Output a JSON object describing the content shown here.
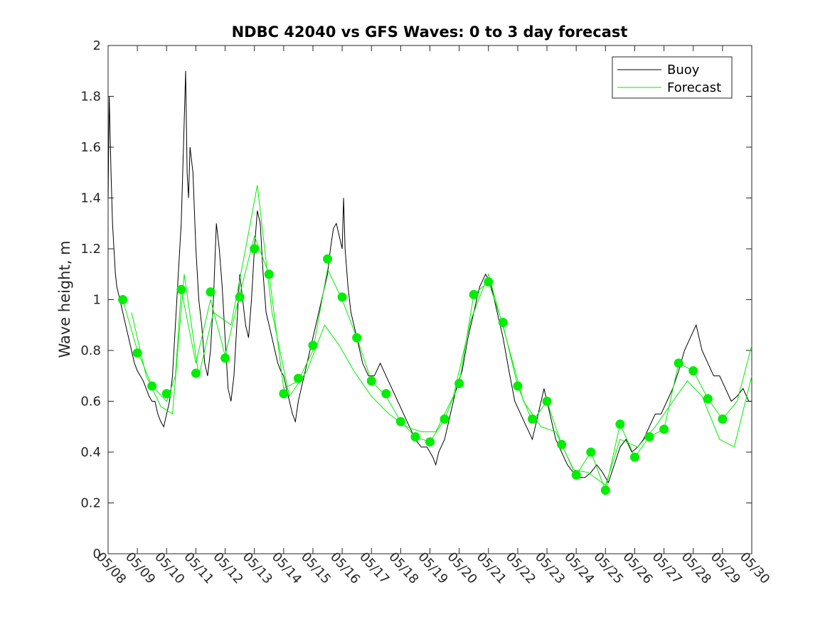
{
  "chart_data": {
    "type": "line",
    "title": "NDBC 42040 vs GFS Waves: 0 to 3 day forecast",
    "xlabel": "",
    "ylabel": "Wave height, m",
    "ylim": [
      0,
      2
    ],
    "yticks": [
      0,
      0.2,
      0.4,
      0.6,
      0.8,
      1,
      1.2,
      1.4,
      1.6,
      1.8,
      2
    ],
    "ytick_labels": [
      "0",
      "0.2",
      "0.4",
      "0.6",
      "0.8",
      "1",
      "1.2",
      "1.4",
      "1.6",
      "1.8",
      "2"
    ],
    "xlim": [
      "05/08",
      "05/30"
    ],
    "xtick_labels": [
      "05/08",
      "05/09",
      "05/10",
      "05/11",
      "05/12",
      "05/13",
      "05/14",
      "05/15",
      "05/16",
      "05/17",
      "05/18",
      "05/19",
      "05/20",
      "05/21",
      "05/22",
      "05/23",
      "05/24",
      "05/25",
      "05/26",
      "05/27",
      "05/28",
      "05/29",
      "05/30"
    ],
    "x_unit": "days after 05/08 00:00",
    "grid": false,
    "legend": {
      "position": "top-right",
      "entries": [
        "Buoy",
        "Forecast"
      ]
    },
    "colors": {
      "buoy": "#000000",
      "forecast": "#00ee00",
      "marker": "#00ee00"
    },
    "series": [
      {
        "name": "Buoy",
        "style": "line",
        "points": [
          [
            0,
            1.4
          ],
          [
            0.04,
            1.8
          ],
          [
            0.1,
            1.5
          ],
          [
            0.15,
            1.3
          ],
          [
            0.2,
            1.2
          ],
          [
            0.25,
            1.1
          ],
          [
            0.3,
            1.05
          ],
          [
            0.4,
            1.0
          ],
          [
            0.5,
            0.95
          ],
          [
            0.6,
            0.9
          ],
          [
            0.7,
            0.85
          ],
          [
            0.8,
            0.8
          ],
          [
            0.9,
            0.75
          ],
          [
            1.0,
            0.72
          ],
          [
            1.1,
            0.7
          ],
          [
            1.2,
            0.68
          ],
          [
            1.3,
            0.65
          ],
          [
            1.4,
            0.62
          ],
          [
            1.5,
            0.6
          ],
          [
            1.6,
            0.6
          ],
          [
            1.7,
            0.55
          ],
          [
            1.8,
            0.52
          ],
          [
            1.9,
            0.5
          ],
          [
            2.0,
            0.55
          ],
          [
            2.1,
            0.6
          ],
          [
            2.2,
            0.7
          ],
          [
            2.3,
            0.9
          ],
          [
            2.4,
            1.1
          ],
          [
            2.5,
            1.3
          ],
          [
            2.55,
            1.5
          ],
          [
            2.6,
            1.7
          ],
          [
            2.65,
            1.9
          ],
          [
            2.7,
            1.5
          ],
          [
            2.75,
            1.4
          ],
          [
            2.8,
            1.6
          ],
          [
            2.9,
            1.5
          ],
          [
            3.0,
            1.2
          ],
          [
            3.1,
            1.0
          ],
          [
            3.2,
            0.9
          ],
          [
            3.3,
            0.75
          ],
          [
            3.4,
            0.7
          ],
          [
            3.5,
            0.8
          ],
          [
            3.6,
            1.0
          ],
          [
            3.7,
            1.3
          ],
          [
            3.8,
            1.2
          ],
          [
            3.9,
            1.05
          ],
          [
            4.0,
            0.85
          ],
          [
            4.1,
            0.65
          ],
          [
            4.2,
            0.6
          ],
          [
            4.3,
            0.7
          ],
          [
            4.4,
            0.9
          ],
          [
            4.5,
            1.1
          ],
          [
            4.6,
            1.0
          ],
          [
            4.7,
            0.9
          ],
          [
            4.8,
            0.85
          ],
          [
            4.9,
            1.0
          ],
          [
            5.0,
            1.2
          ],
          [
            5.1,
            1.35
          ],
          [
            5.2,
            1.3
          ],
          [
            5.3,
            1.1
          ],
          [
            5.4,
            0.95
          ],
          [
            5.5,
            0.9
          ],
          [
            5.6,
            0.85
          ],
          [
            5.7,
            0.8
          ],
          [
            5.8,
            0.75
          ],
          [
            5.9,
            0.72
          ],
          [
            6.0,
            0.7
          ],
          [
            6.1,
            0.65
          ],
          [
            6.2,
            0.6
          ],
          [
            6.3,
            0.55
          ],
          [
            6.4,
            0.52
          ],
          [
            6.5,
            0.6
          ],
          [
            6.7,
            0.7
          ],
          [
            6.9,
            0.8
          ],
          [
            7.1,
            0.9
          ],
          [
            7.3,
            1.0
          ],
          [
            7.5,
            1.1
          ],
          [
            7.6,
            1.2
          ],
          [
            7.7,
            1.28
          ],
          [
            7.8,
            1.3
          ],
          [
            7.9,
            1.25
          ],
          [
            8.0,
            1.2
          ],
          [
            8.05,
            1.4
          ],
          [
            8.1,
            1.2
          ],
          [
            8.2,
            1.05
          ],
          [
            8.3,
            0.95
          ],
          [
            8.5,
            0.85
          ],
          [
            8.7,
            0.75
          ],
          [
            8.9,
            0.7
          ],
          [
            9.1,
            0.7
          ],
          [
            9.3,
            0.75
          ],
          [
            9.5,
            0.7
          ],
          [
            9.7,
            0.65
          ],
          [
            9.9,
            0.6
          ],
          [
            10.1,
            0.55
          ],
          [
            10.3,
            0.5
          ],
          [
            10.5,
            0.45
          ],
          [
            10.7,
            0.42
          ],
          [
            10.9,
            0.42
          ],
          [
            11.0,
            0.4
          ],
          [
            11.1,
            0.38
          ],
          [
            11.2,
            0.35
          ],
          [
            11.3,
            0.4
          ],
          [
            11.5,
            0.45
          ],
          [
            11.7,
            0.55
          ],
          [
            11.9,
            0.65
          ],
          [
            12.1,
            0.72
          ],
          [
            12.3,
            0.85
          ],
          [
            12.5,
            0.95
          ],
          [
            12.7,
            1.05
          ],
          [
            12.9,
            1.1
          ],
          [
            13.1,
            1.05
          ],
          [
            13.3,
            0.95
          ],
          [
            13.5,
            0.85
          ],
          [
            13.7,
            0.72
          ],
          [
            13.9,
            0.6
          ],
          [
            14.1,
            0.55
          ],
          [
            14.3,
            0.5
          ],
          [
            14.5,
            0.45
          ],
          [
            14.7,
            0.55
          ],
          [
            14.9,
            0.65
          ],
          [
            15.1,
            0.55
          ],
          [
            15.3,
            0.45
          ],
          [
            15.5,
            0.4
          ],
          [
            15.7,
            0.35
          ],
          [
            15.9,
            0.32
          ],
          [
            16.1,
            0.3
          ],
          [
            16.3,
            0.3
          ],
          [
            16.5,
            0.32
          ],
          [
            16.7,
            0.35
          ],
          [
            16.9,
            0.32
          ],
          [
            17.1,
            0.28
          ],
          [
            17.3,
            0.35
          ],
          [
            17.5,
            0.42
          ],
          [
            17.7,
            0.45
          ],
          [
            17.9,
            0.4
          ],
          [
            18.1,
            0.42
          ],
          [
            18.3,
            0.45
          ],
          [
            18.5,
            0.5
          ],
          [
            18.7,
            0.55
          ],
          [
            18.9,
            0.55
          ],
          [
            19.1,
            0.6
          ],
          [
            19.3,
            0.65
          ],
          [
            19.5,
            0.72
          ],
          [
            19.7,
            0.8
          ],
          [
            19.9,
            0.85
          ],
          [
            20.1,
            0.9
          ],
          [
            20.3,
            0.8
          ],
          [
            20.5,
            0.75
          ],
          [
            20.7,
            0.7
          ],
          [
            20.9,
            0.7
          ],
          [
            21.1,
            0.65
          ],
          [
            21.3,
            0.6
          ],
          [
            21.5,
            0.62
          ],
          [
            21.7,
            0.65
          ],
          [
            21.9,
            0.6
          ],
          [
            22.0,
            0.6
          ]
        ]
      },
      {
        "name": "Forecast",
        "style": "line",
        "points": [
          [
            0.5,
            1.0
          ],
          [
            1.0,
            0.8
          ],
          [
            1.5,
            0.66
          ],
          [
            2.0,
            0.6
          ],
          [
            2.3,
            0.7
          ],
          [
            2.5,
            1.04
          ],
          [
            3.0,
            0.75
          ],
          [
            3.5,
            1.0
          ],
          [
            4.0,
            0.78
          ],
          [
            4.5,
            1.02
          ],
          [
            5.0,
            1.25
          ],
          [
            5.5,
            1.1
          ],
          [
            6.0,
            0.65
          ],
          [
            6.5,
            0.68
          ],
          [
            7.0,
            0.8
          ],
          [
            7.5,
            1.12
          ],
          [
            8.0,
            1.0
          ],
          [
            8.5,
            0.85
          ],
          [
            9.0,
            0.68
          ],
          [
            9.5,
            0.62
          ],
          [
            10.0,
            0.52
          ],
          [
            10.5,
            0.46
          ],
          [
            11.0,
            0.44
          ],
          [
            11.5,
            0.53
          ],
          [
            12.0,
            0.67
          ],
          [
            12.5,
            1.02
          ],
          [
            13.0,
            1.07
          ],
          [
            13.5,
            0.9
          ],
          [
            14.0,
            0.66
          ],
          [
            14.5,
            0.52
          ],
          [
            15.0,
            0.6
          ],
          [
            15.5,
            0.43
          ],
          [
            16.0,
            0.31
          ],
          [
            16.5,
            0.4
          ],
          [
            17.0,
            0.25
          ],
          [
            17.5,
            0.51
          ],
          [
            18.0,
            0.38
          ],
          [
            18.5,
            0.46
          ],
          [
            19.0,
            0.49
          ],
          [
            19.5,
            0.75
          ],
          [
            20.0,
            0.72
          ],
          [
            20.5,
            0.61
          ],
          [
            21.0,
            0.53
          ],
          [
            21.5,
            0.6
          ],
          [
            22.0,
            0.82
          ]
        ]
      },
      {
        "name": "",
        "style": "line",
        "points": [
          [
            0.8,
            0.95
          ],
          [
            1.3,
            0.7
          ],
          [
            1.8,
            0.58
          ],
          [
            2.2,
            0.55
          ],
          [
            2.6,
            1.1
          ],
          [
            3.1,
            0.7
          ],
          [
            3.6,
            0.95
          ],
          [
            4.2,
            0.9
          ],
          [
            4.7,
            1.2
          ],
          [
            5.1,
            1.45
          ],
          [
            5.6,
            0.95
          ],
          [
            6.2,
            0.62
          ],
          [
            6.8,
            0.72
          ],
          [
            7.4,
            0.9
          ],
          [
            7.9,
            0.82
          ],
          [
            8.4,
            0.72
          ],
          [
            9.0,
            0.62
          ],
          [
            9.6,
            0.55
          ],
          [
            10.2,
            0.5
          ],
          [
            10.7,
            0.48
          ],
          [
            11.2,
            0.48
          ],
          [
            11.8,
            0.62
          ],
          [
            12.4,
            0.92
          ],
          [
            13.0,
            1.1
          ],
          [
            13.6,
            0.85
          ],
          [
            14.2,
            0.6
          ],
          [
            14.8,
            0.5
          ],
          [
            15.3,
            0.48
          ],
          [
            15.9,
            0.33
          ],
          [
            16.4,
            0.32
          ],
          [
            17.0,
            0.27
          ],
          [
            17.5,
            0.45
          ],
          [
            18.1,
            0.42
          ],
          [
            18.7,
            0.5
          ],
          [
            19.3,
            0.6
          ],
          [
            19.8,
            0.68
          ],
          [
            20.3,
            0.62
          ],
          [
            20.9,
            0.45
          ],
          [
            21.4,
            0.42
          ],
          [
            22.0,
            0.7
          ]
        ]
      }
    ],
    "markers": {
      "name": "",
      "points": [
        [
          0.5,
          1.0
        ],
        [
          1.0,
          0.79
        ],
        [
          1.5,
          0.66
        ],
        [
          2.0,
          0.63
        ],
        [
          2.5,
          1.04
        ],
        [
          3.0,
          0.71
        ],
        [
          3.5,
          1.03
        ],
        [
          4.0,
          0.77
        ],
        [
          4.5,
          1.01
        ],
        [
          5.0,
          1.2
        ],
        [
          5.5,
          1.1
        ],
        [
          6.0,
          0.63
        ],
        [
          6.5,
          0.69
        ],
        [
          7.0,
          0.82
        ],
        [
          7.5,
          1.16
        ],
        [
          8.0,
          1.01
        ],
        [
          8.5,
          0.85
        ],
        [
          9.0,
          0.68
        ],
        [
          9.5,
          0.63
        ],
        [
          10.0,
          0.52
        ],
        [
          10.5,
          0.46
        ],
        [
          11.0,
          0.44
        ],
        [
          11.5,
          0.53
        ],
        [
          12.0,
          0.67
        ],
        [
          12.5,
          1.02
        ],
        [
          13.0,
          1.07
        ],
        [
          13.5,
          0.91
        ],
        [
          14.0,
          0.66
        ],
        [
          14.5,
          0.53
        ],
        [
          15.0,
          0.6
        ],
        [
          15.5,
          0.43
        ],
        [
          16.0,
          0.31
        ],
        [
          16.5,
          0.4
        ],
        [
          17.0,
          0.25
        ],
        [
          17.5,
          0.51
        ],
        [
          18.0,
          0.38
        ],
        [
          18.5,
          0.46
        ],
        [
          19.0,
          0.49
        ],
        [
          19.5,
          0.75
        ],
        [
          20.0,
          0.72
        ],
        [
          20.5,
          0.61
        ],
        [
          21.0,
          0.53
        ]
      ]
    }
  }
}
